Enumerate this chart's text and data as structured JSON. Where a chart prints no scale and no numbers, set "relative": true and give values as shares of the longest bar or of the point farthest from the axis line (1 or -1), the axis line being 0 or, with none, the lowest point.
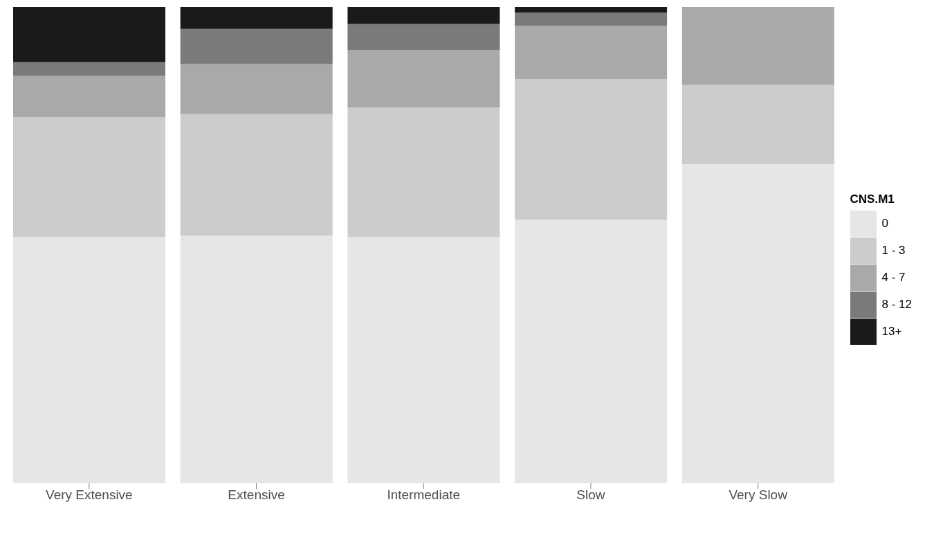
{
  "chart_data": {
    "type": "bar",
    "relative": true,
    "stacked": true,
    "legend": "right",
    "legend_title": "CNS.M1",
    "categories": [
      "Very Extensive",
      "Extensive",
      "Intermediate",
      "Slow",
      "Very Slow"
    ],
    "series": [
      {
        "name": "0",
        "color": "#e6e6e6",
        "values": [
          0.517,
          0.52,
          0.517,
          0.553,
          0.67
        ]
      },
      {
        "name": "1 - 3",
        "color": "#cccccc",
        "values": [
          0.252,
          0.255,
          0.272,
          0.296,
          0.166
        ]
      },
      {
        "name": "4 - 7",
        "color": "#a9a9a9",
        "values": [
          0.086,
          0.105,
          0.121,
          0.111,
          0.164
        ]
      },
      {
        "name": "8 - 12",
        "color": "#7a7a7a",
        "values": [
          0.029,
          0.074,
          0.054,
          0.028,
          0
        ]
      },
      {
        "name": "13+",
        "color": "#1a1a1a",
        "values": [
          0.116,
          0.046,
          0.036,
          0.012,
          0
        ]
      }
    ]
  }
}
